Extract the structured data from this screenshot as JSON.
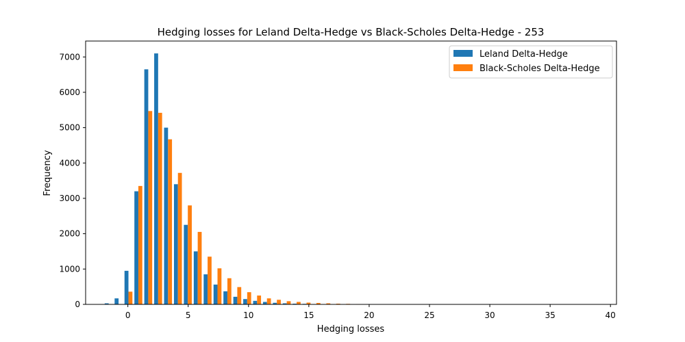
{
  "chart_data": {
    "type": "bar",
    "title": "Hedging losses for Leland Delta-Hedge vs Black-Scholes Delta-Hedge - 253",
    "xlabel": "Hedging losses",
    "ylabel": "Frequency",
    "xlim": [
      -3.5,
      40.5
    ],
    "ylim": [
      0,
      7450
    ],
    "xticks": [
      0,
      5,
      10,
      15,
      20,
      25,
      30,
      35,
      40
    ],
    "yticks": [
      0,
      1000,
      2000,
      3000,
      4000,
      5000,
      6000,
      7000
    ],
    "grid": false,
    "legend_position": "top-right",
    "bin_start": -2.0,
    "bin_width": 0.82,
    "series": [
      {
        "name": "Leland Delta-Hedge",
        "color": "#1f77b4",
        "values": [
          30,
          170,
          950,
          3200,
          6650,
          7100,
          5000,
          3400,
          2250,
          1500,
          850,
          560,
          370,
          215,
          150,
          100,
          70,
          45,
          30,
          20,
          15,
          10,
          8,
          6,
          5,
          4,
          3,
          2,
          2,
          1,
          1,
          1,
          1,
          1,
          1,
          1,
          1,
          1,
          1,
          1,
          1,
          1,
          1,
          1,
          1,
          1,
          1,
          1,
          1,
          1
        ]
      },
      {
        "name": "Black-Scholes Delta-Hedge",
        "color": "#ff7f0e",
        "values": [
          0,
          0,
          360,
          3350,
          5470,
          5420,
          4670,
          3720,
          2800,
          2050,
          1350,
          1020,
          740,
          490,
          345,
          250,
          170,
          130,
          90,
          70,
          50,
          40,
          30,
          20,
          15,
          10,
          8,
          6,
          5,
          4,
          3,
          3,
          2,
          2,
          2,
          1,
          1,
          1,
          1,
          1,
          1,
          1,
          1,
          1,
          1,
          1,
          1,
          1,
          1,
          1
        ]
      }
    ]
  }
}
